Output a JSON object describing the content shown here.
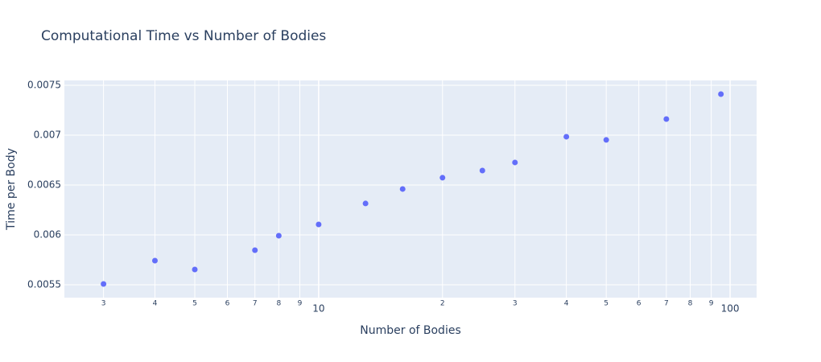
{
  "chart_data": {
    "type": "scatter",
    "title": "Computational Time vs Number of Bodies",
    "x_label": "Number of Bodies",
    "y_label": "Time per Body",
    "x_scale": "log",
    "grid": true,
    "color": "#636efa",
    "x": [
      3,
      4,
      5,
      7,
      8,
      10,
      13,
      16,
      20,
      25,
      30,
      40,
      50,
      70,
      95
    ],
    "values": [
      0.005508,
      0.005742,
      0.005653,
      0.005847,
      0.005992,
      0.006105,
      0.006315,
      0.00646,
      0.006573,
      0.006645,
      0.006726,
      0.006984,
      0.006952,
      0.007161,
      0.007411
    ],
    "xlim": [
      2.41,
      116
    ],
    "ylim": [
      0.005371,
      0.007548
    ],
    "xticks": [
      3,
      4,
      5,
      6,
      7,
      8,
      9,
      10,
      {
        "value": 20,
        "label": "2"
      },
      {
        "value": 30,
        "label": "3"
      },
      {
        "value": 40,
        "label": "4"
      },
      {
        "value": 50,
        "label": "5"
      },
      {
        "value": 60,
        "label": "6"
      },
      {
        "value": 70,
        "label": "7"
      },
      {
        "value": 80,
        "label": "8"
      },
      {
        "value": 90,
        "label": "9"
      },
      100
    ],
    "yticks": [
      0.0055,
      0.006,
      0.0065,
      0.007,
      0.0075
    ]
  }
}
